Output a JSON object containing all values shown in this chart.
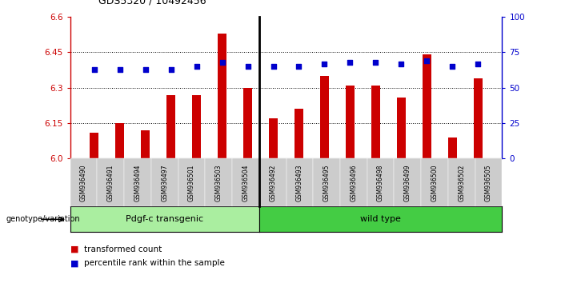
{
  "title": "GDS5320 / 10492456",
  "samples": [
    "GSM936490",
    "GSM936491",
    "GSM936494",
    "GSM936497",
    "GSM936501",
    "GSM936503",
    "GSM936504",
    "GSM936492",
    "GSM936493",
    "GSM936495",
    "GSM936496",
    "GSM936498",
    "GSM936499",
    "GSM936500",
    "GSM936502",
    "GSM936505"
  ],
  "bar_values": [
    6.11,
    6.15,
    6.12,
    6.27,
    6.27,
    6.53,
    6.3,
    6.17,
    6.21,
    6.35,
    6.31,
    6.31,
    6.26,
    6.44,
    6.09,
    6.34
  ],
  "percentile_values": [
    63,
    63,
    63,
    63,
    65,
    68,
    65,
    65,
    65,
    67,
    68,
    68,
    67,
    69,
    65,
    67
  ],
  "ylim_left": [
    6.0,
    6.6
  ],
  "ylim_right": [
    0,
    100
  ],
  "yticks_left": [
    6.0,
    6.15,
    6.3,
    6.45,
    6.6
  ],
  "yticks_right": [
    0,
    25,
    50,
    75,
    100
  ],
  "bar_color": "#cc0000",
  "dot_color": "#0000cc",
  "group1_label": "Pdgf-c transgenic",
  "group2_label": "wild type",
  "group1_color": "#aaeea0",
  "group2_color": "#44cc44",
  "group1_count": 7,
  "group2_count": 9,
  "legend_bar": "transformed count",
  "legend_dot": "percentile rank within the sample",
  "xlabel_group": "genotype/variation",
  "bg_color": "#ffffff",
  "tick_bg_color": "#cccccc",
  "hgrid_vals": [
    6.15,
    6.3,
    6.45
  ]
}
